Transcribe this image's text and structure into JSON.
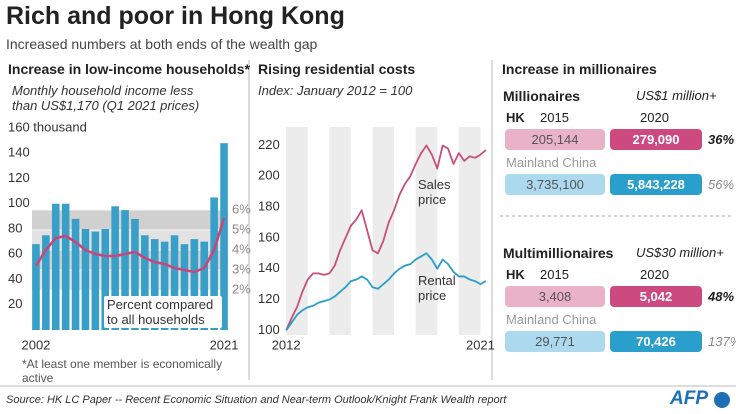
{
  "title": "Rich and poor in Hong Kong",
  "subtitle": "Increased numbers at both ends of the wealth gap",
  "chart_data": [
    {
      "type": "bar",
      "title": "Increase in low-income households*",
      "subtitle": "Monthly household income less than US$1,170 (Q1 2021 prices)",
      "x": [
        2002,
        2003,
        2004,
        2005,
        2006,
        2007,
        2008,
        2009,
        2010,
        2011,
        2012,
        2013,
        2014,
        2015,
        2016,
        2017,
        2018,
        2019,
        2020,
        2021
      ],
      "xlim": [
        2001.6,
        2021.4
      ],
      "xticks": [
        2002,
        2021
      ],
      "series": [
        {
          "type": "bar",
          "color": "#38a0c8",
          "values": [
            68,
            75,
            100,
            100,
            88,
            80,
            78,
            80,
            98,
            95,
            88,
            75,
            72,
            70,
            75,
            68,
            72,
            70,
            105,
            148
          ]
        },
        {
          "type": "line",
          "name": "Percent compared to all households",
          "axis": "y2",
          "color": "#c8457a",
          "values": [
            3.2,
            4.0,
            4.6,
            4.7,
            4.4,
            4.0,
            3.8,
            3.7,
            3.7,
            3.8,
            3.9,
            3.6,
            3.4,
            3.3,
            3.1,
            3.0,
            2.9,
            3.1,
            4.0,
            5.6
          ]
        }
      ],
      "ylim": [
        0,
        160
      ],
      "yticks": [
        20,
        40,
        60,
        80,
        100,
        120,
        140,
        {
          "value": 160,
          "label": "160 thousand"
        }
      ],
      "y2lim": [
        0,
        10.1
      ],
      "y2ticks": [
        {
          "value": 2,
          "label": "2%"
        },
        {
          "value": 3,
          "label": "3%"
        },
        {
          "value": 4,
          "label": "4%"
        },
        {
          "value": 5,
          "label": "5%"
        },
        {
          "value": 6,
          "label": "6%"
        }
      ],
      "footnote": "*At least one member is economically active"
    },
    {
      "type": "line",
      "title": "Rising residential costs",
      "subtitle": "Index: January 2012 = 100",
      "x": [
        2012,
        2012.25,
        2012.5,
        2012.75,
        2013,
        2013.25,
        2013.5,
        2013.75,
        2014,
        2014.25,
        2014.5,
        2014.75,
        2015,
        2015.25,
        2015.5,
        2015.75,
        2016,
        2016.25,
        2016.5,
        2016.75,
        2017,
        2017.25,
        2017.5,
        2017.75,
        2018,
        2018.25,
        2018.5,
        2018.75,
        2019,
        2019.25,
        2019.5,
        2019.75,
        2020,
        2020.25,
        2020.5,
        2020.75,
        2021,
        2021.25
      ],
      "xlim": [
        2011.9,
        2021.35
      ],
      "xticks": [
        2012,
        2021
      ],
      "ylim": [
        97,
        232
      ],
      "yticks": [
        100,
        120,
        140,
        160,
        180,
        200,
        220
      ],
      "series": [
        {
          "name": "Sales price",
          "color": "#c8507a",
          "values": [
            100,
            108,
            115,
            125,
            133,
            137,
            137,
            136,
            137,
            142,
            152,
            160,
            168,
            172,
            178,
            165,
            152,
            150,
            158,
            170,
            178,
            188,
            195,
            200,
            208,
            215,
            220,
            214,
            205,
            220,
            218,
            208,
            215,
            210,
            213,
            212,
            214,
            217
          ]
        },
        {
          "name": "Rental price",
          "color": "#2a9fc6",
          "values": [
            100,
            105,
            110,
            113,
            115,
            116,
            118,
            119,
            120,
            122,
            125,
            128,
            132,
            133,
            135,
            133,
            128,
            127,
            130,
            133,
            137,
            140,
            142,
            143,
            146,
            148,
            150,
            146,
            140,
            146,
            143,
            138,
            135,
            135,
            133,
            132,
            130,
            132
          ]
        }
      ]
    }
  ],
  "wealth": {
    "title": "Increase in millionaires",
    "years": [
      "2015",
      "2020"
    ],
    "groups": [
      {
        "title": "Millionaires",
        "threshold": "US$1 million+",
        "rows": [
          {
            "region": "HK",
            "values": [
              "205,144",
              "279,090"
            ],
            "change": "36%"
          },
          {
            "region": "Mainland China",
            "values": [
              "3,735,100",
              "5,843,228"
            ],
            "change": "56%"
          }
        ]
      },
      {
        "title": "Multimillionaires",
        "threshold": "US$30 million+",
        "rows": [
          {
            "region": "HK",
            "values": [
              "3,408",
              "5,042"
            ],
            "change": "48%"
          },
          {
            "region": "Mainland China",
            "values": [
              "29,771",
              "70,426"
            ],
            "change": "137%"
          }
        ]
      }
    ]
  },
  "source": "Source: HK LC Paper -- Recent Economic Situation and Near-term Outlook/Knight Frank Wealth report",
  "logo": "AFP"
}
